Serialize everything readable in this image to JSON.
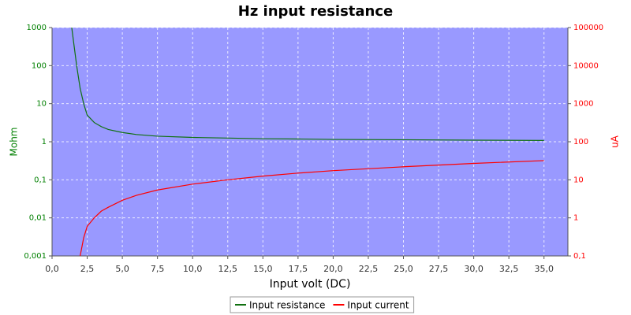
{
  "chart_data": {
    "type": "line",
    "title": "Hz input resistance",
    "x_label": "Input volt (DC)",
    "y_label": "Mohm",
    "y2_label": "uA",
    "x": [
      1.4,
      1.75,
      2,
      2.25,
      2.5,
      3,
      3.5,
      4,
      5,
      6,
      7.5,
      10,
      12.5,
      15,
      17.5,
      20,
      25,
      30,
      35
    ],
    "series": [
      {
        "name": "Input resistance",
        "color": "#107010",
        "axis": "y",
        "values": [
          1000,
          100,
          25,
          10,
          5,
          3.2,
          2.5,
          2.1,
          1.75,
          1.55,
          1.4,
          1.3,
          1.25,
          1.2,
          1.18,
          1.15,
          1.13,
          1.1,
          1.08
        ]
      },
      {
        "name": "Input current",
        "color": "#ff0000",
        "axis": "y2",
        "values": [
          null,
          null,
          0.1,
          0.3,
          0.6,
          1,
          1.5,
          1.9,
          2.9,
          3.9,
          5.4,
          7.7,
          10,
          12.5,
          15,
          17.4,
          22,
          27,
          32
        ]
      }
    ],
    "xlim": [
      0,
      36.7
    ],
    "xticks": [
      {
        "value": 0,
        "label": "0,0"
      },
      {
        "value": 2.5,
        "label": "2,5"
      },
      {
        "value": 5,
        "label": "5,0"
      },
      {
        "value": 7.5,
        "label": "7,5"
      },
      {
        "value": 10,
        "label": "10,0"
      },
      {
        "value": 12.5,
        "label": "12,5"
      },
      {
        "value": 15,
        "label": "15,0"
      },
      {
        "value": 17.5,
        "label": "17,5"
      },
      {
        "value": 20,
        "label": "20,0"
      },
      {
        "value": 22.5,
        "label": "22,5"
      },
      {
        "value": 25,
        "label": "25,0"
      },
      {
        "value": 27.5,
        "label": "27,5"
      },
      {
        "value": 30,
        "label": "30,0"
      },
      {
        "value": 32.5,
        "label": "32,5"
      },
      {
        "value": 35,
        "label": "35,0"
      }
    ],
    "ylim": [
      0.001,
      1000
    ],
    "yticks": [
      {
        "value": 0.001,
        "label": "0,001"
      },
      {
        "value": 0.01,
        "label": "0,01"
      },
      {
        "value": 0.1,
        "label": "0,1"
      },
      1,
      10,
      100,
      1000
    ],
    "y2lim": [
      0.1,
      100000
    ],
    "y2ticks": [
      {
        "value": 0.1,
        "label": "0,1"
      },
      1,
      10,
      100,
      1000,
      10000,
      100000
    ],
    "log_y": true,
    "grid": true,
    "legend": "bottom"
  }
}
